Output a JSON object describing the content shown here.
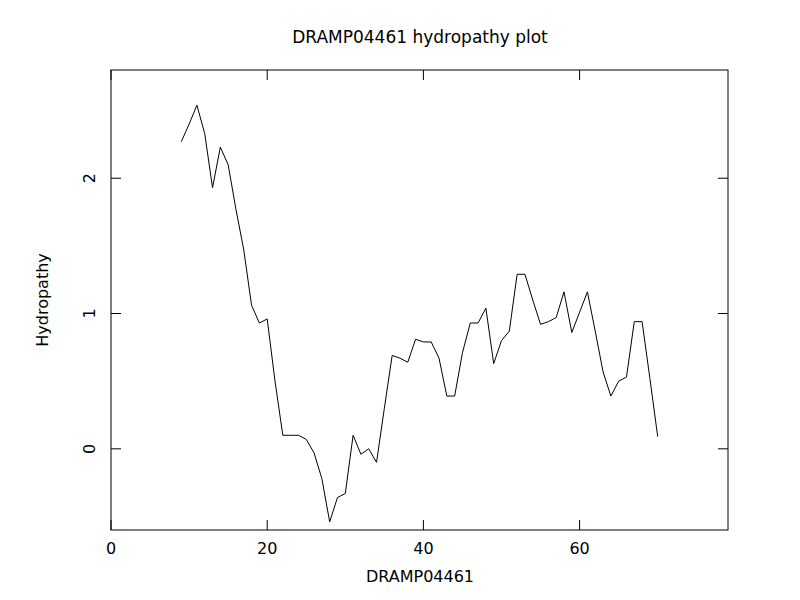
{
  "chart_data": {
    "type": "line",
    "title": "DRAMP04461 hydropathy plot",
    "x_label": "DRAMP04461",
    "y_label": "Hydropathy",
    "x": [
      9,
      10,
      11,
      12,
      13,
      14,
      15,
      16,
      17,
      18,
      19,
      20,
      21,
      22,
      23,
      24,
      25,
      26,
      27,
      28,
      29,
      30,
      31,
      32,
      33,
      34,
      35,
      36,
      37,
      38,
      39,
      40,
      41,
      42,
      43,
      44,
      45,
      46,
      47,
      48,
      49,
      50,
      51,
      52,
      53,
      54,
      55,
      56,
      57,
      58,
      59,
      60,
      61,
      62,
      63,
      64,
      65,
      66,
      67,
      68,
      69,
      70
    ],
    "series": [
      {
        "name": "Hydropathy",
        "color": "#000000",
        "values": [
          2.27,
          2.4,
          2.54,
          2.33,
          1.93,
          2.23,
          2.1,
          1.77,
          1.47,
          1.06,
          0.93,
          0.96,
          0.5,
          0.1,
          0.1,
          0.1,
          0.07,
          -0.03,
          -0.22,
          -0.54,
          -0.36,
          -0.33,
          0.1,
          -0.04,
          0.0,
          -0.1,
          0.3,
          0.69,
          0.67,
          0.64,
          0.81,
          0.79,
          0.79,
          0.67,
          0.39,
          0.39,
          0.71,
          0.93,
          0.93,
          1.04,
          0.63,
          0.8,
          0.87,
          1.29,
          1.29,
          1.1,
          0.92,
          0.94,
          0.97,
          1.16,
          0.86,
          1.01,
          1.16,
          0.87,
          0.57,
          0.39,
          0.5,
          0.53,
          0.94,
          0.94,
          0.52,
          0.09
        ]
      }
    ],
    "xlim": [
      0,
      79
    ],
    "ylim": [
      -0.6,
      2.8
    ],
    "xticks": [
      0,
      20,
      40,
      60
    ],
    "yticks": [
      0,
      1,
      2
    ],
    "grid": false
  }
}
